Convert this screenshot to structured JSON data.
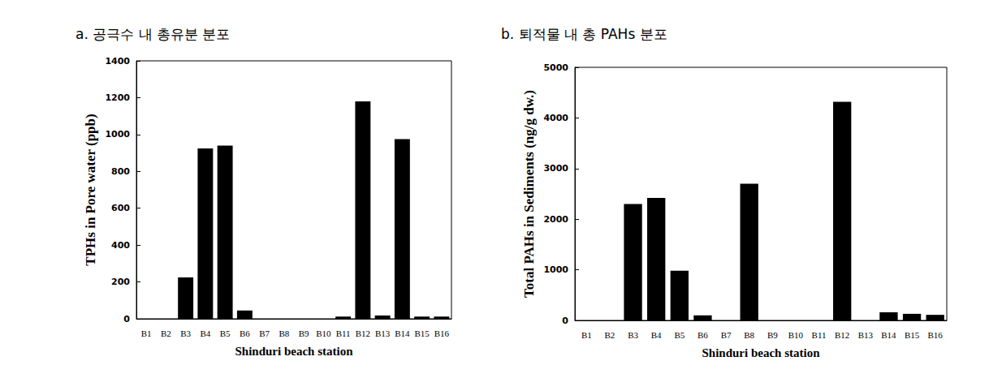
{
  "chart_data": [
    {
      "type": "bar",
      "title": "a. 공극수 내 총유분 분포",
      "x_label": "Shinduri beach station",
      "y_label": "TPHs in Pore water (ppb)",
      "categories": [
        "B1",
        "B2",
        "B3",
        "B4",
        "B5",
        "B6",
        "B7",
        "B8",
        "B9",
        "B10",
        "B11",
        "B12",
        "B13",
        "B14",
        "B15",
        "B16"
      ],
      "values": [
        0,
        0,
        225,
        925,
        940,
        45,
        0,
        0,
        0,
        0,
        12,
        1180,
        18,
        975,
        12,
        12
      ],
      "color": "#000000",
      "ylim": [
        0,
        1400
      ],
      "yticks": [
        0,
        200,
        400,
        600,
        800,
        1000,
        1200,
        1400
      ],
      "grid": false
    },
    {
      "type": "bar",
      "title": "b. 퇴적물 내 총 PAHs 분포",
      "x_label": "Shinduri beach station",
      "y_label": "Total PAHs in Sediments (ng/g dw.)",
      "categories": [
        "B1",
        "B2",
        "B3",
        "B4",
        "B5",
        "B6",
        "B7",
        "B8",
        "B9",
        "B10",
        "B11",
        "B12",
        "B13",
        "B14",
        "B15",
        "B16"
      ],
      "values": [
        0,
        0,
        2300,
        2420,
        980,
        100,
        0,
        2700,
        0,
        0,
        0,
        4320,
        0,
        160,
        130,
        110
      ],
      "color": "#000000",
      "ylim": [
        0,
        5000
      ],
      "yticks": [
        0,
        1000,
        2000,
        3000,
        4000,
        5000
      ],
      "grid": false
    }
  ]
}
